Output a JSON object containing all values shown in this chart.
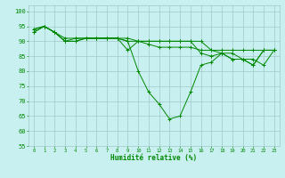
{
  "background_color": "#c8f0f0",
  "grid_color": "#a0c8c8",
  "line_color": "#008800",
  "xlabel": "Humidité relative (%)",
  "xlabel_color": "#008800",
  "tick_color": "#008800",
  "ylim": [
    55,
    102
  ],
  "xlim": [
    -0.5,
    23.5
  ],
  "yticks": [
    55,
    60,
    65,
    70,
    75,
    80,
    85,
    90,
    95,
    100
  ],
  "xticks": [
    0,
    1,
    2,
    3,
    4,
    5,
    6,
    7,
    8,
    9,
    10,
    11,
    12,
    13,
    14,
    15,
    16,
    17,
    18,
    19,
    20,
    21,
    22,
    23
  ],
  "series": [
    [
      94,
      95,
      93,
      90,
      90,
      91,
      91,
      91,
      91,
      90,
      80,
      73,
      69,
      64,
      65,
      73,
      82,
      83,
      86,
      84,
      84,
      82,
      87,
      87
    ],
    [
      93,
      95,
      93,
      91,
      91,
      91,
      91,
      91,
      91,
      90,
      90,
      89,
      88,
      88,
      88,
      88,
      87,
      87,
      87,
      87,
      87,
      87,
      87,
      87
    ],
    [
      93,
      95,
      93,
      90,
      90,
      91,
      91,
      91,
      91,
      91,
      90,
      90,
      90,
      90,
      90,
      90,
      90,
      87,
      86,
      86,
      84,
      84,
      82,
      87
    ],
    [
      94,
      95,
      93,
      90,
      91,
      91,
      91,
      91,
      91,
      87,
      90,
      90,
      90,
      90,
      90,
      90,
      86,
      85,
      86,
      84,
      84,
      82,
      87,
      87
    ]
  ]
}
